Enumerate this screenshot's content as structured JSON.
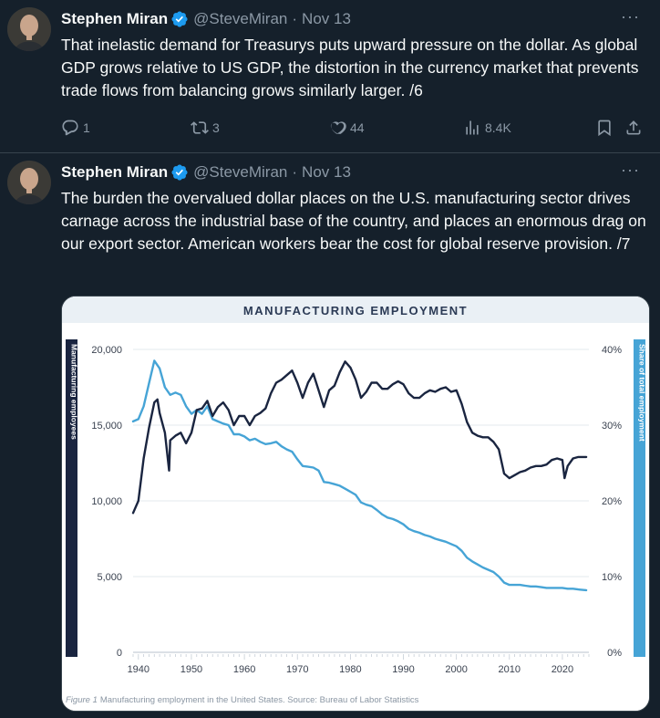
{
  "tweets": [
    {
      "author": "Stephen Miran",
      "handle": "@SteveMiran",
      "date": "Nov 13",
      "text": "That inelastic demand for Treasurys puts upward pressure on the dollar. As global GDP grows relative to US GDP, the distortion in the currency market that prevents trade flows from balancing grows similarly larger. /6",
      "replies": "1",
      "reposts": "3",
      "likes": "44",
      "views": "8.4K"
    },
    {
      "author": "Stephen Miran",
      "handle": "@SteveMiran",
      "date": "Nov 13",
      "text": "The burden the overvalued dollar places on the U.S. manufacturing sector drives carnage across the industrial base of the country, and places an enormous drag on our export sector. American workers bear the cost for global reserve provision. /7"
    }
  ],
  "colors": {
    "accent": "#1d9bf0",
    "employees_line": "#1a2540",
    "share_line": "#46a4d6"
  },
  "chart_data": {
    "type": "line",
    "title": "MANUFACTURING EMPLOYMENT",
    "ylabel_left": "Manufacturing employees",
    "ylabel_right": "Share of total employment",
    "caption_prefix": "Figure 1",
    "caption": "Manufacturing employment in the United States. Source: Bureau of Labor Statistics",
    "xlim": [
      1939,
      2025
    ],
    "ylim_left": [
      0,
      20000
    ],
    "ylim_right": [
      0,
      40
    ],
    "x_ticks": [
      "1940",
      "1950",
      "1960",
      "1970",
      "1980",
      "1990",
      "2000",
      "2010",
      "2020"
    ],
    "y_ticks_left": [
      "0",
      "5,000",
      "10,000",
      "15,000",
      "20,000"
    ],
    "y_ticks_right": [
      "0%",
      "10%",
      "20%",
      "30%",
      "40%"
    ],
    "grid": true,
    "series": [
      {
        "name": "Manufacturing employees",
        "axis": "left",
        "x": [
          1939,
          1940,
          1941,
          1942,
          1943,
          1943.6,
          1944,
          1945,
          1945.8,
          1946,
          1947,
          1948,
          1949,
          1950,
          1951,
          1952,
          1953,
          1954,
          1955,
          1956,
          1957,
          1958,
          1959,
          1960,
          1961,
          1962,
          1963,
          1964,
          1965,
          1966,
          1967,
          1968,
          1969,
          1970,
          1971,
          1972,
          1973,
          1974,
          1975,
          1976,
          1977,
          1978,
          1979,
          1980,
          1981,
          1982,
          1983,
          1984,
          1985,
          1986,
          1987,
          1988,
          1989,
          1990,
          1991,
          1992,
          1993,
          1994,
          1995,
          1996,
          1997,
          1998,
          1999,
          2000,
          2001,
          2002,
          2003,
          2004,
          2005,
          2006,
          2007,
          2008,
          2009,
          2010,
          2011,
          2012,
          2013,
          2014,
          2015,
          2016,
          2017,
          2018,
          2019,
          2020,
          2020.4,
          2021,
          2022,
          2023,
          2024.5
        ],
        "values": [
          9200,
          10000,
          12800,
          14800,
          16500,
          16700,
          15800,
          14500,
          12000,
          14000,
          14300,
          14500,
          13800,
          14500,
          16000,
          16100,
          16600,
          15600,
          16200,
          16500,
          16000,
          15000,
          15600,
          15600,
          15000,
          15600,
          15800,
          16100,
          17100,
          17800,
          18000,
          18300,
          18600,
          17800,
          16800,
          17800,
          18400,
          17300,
          16200,
          17300,
          17600,
          18500,
          19200,
          18800,
          18000,
          16800,
          17200,
          17800,
          17800,
          17400,
          17400,
          17700,
          17900,
          17700,
          17100,
          16800,
          16800,
          17100,
          17300,
          17200,
          17400,
          17500,
          17200,
          17300,
          16400,
          15200,
          14500,
          14300,
          14200,
          14200,
          13900,
          13400,
          11800,
          11500,
          11700,
          11900,
          12000,
          12200,
          12300,
          12300,
          12400,
          12700,
          12800,
          12700,
          11500,
          12300,
          12800,
          12900,
          12900
        ]
      },
      {
        "name": "Share of total employment",
        "axis": "right",
        "x": [
          1939,
          1940,
          1941,
          1942,
          1943,
          1944,
          1945,
          1946,
          1947,
          1948,
          1949,
          1950,
          1951,
          1952,
          1953,
          1954,
          1955,
          1956,
          1957,
          1958,
          1959,
          1960,
          1961,
          1962,
          1963,
          1964,
          1965,
          1966,
          1967,
          1968,
          1969,
          1970,
          1971,
          1972,
          1973,
          1974,
          1975,
          1976,
          1977,
          1978,
          1979,
          1980,
          1981,
          1982,
          1983,
          1984,
          1985,
          1986,
          1987,
          1988,
          1989,
          1990,
          1991,
          1992,
          1993,
          1994,
          1995,
          1996,
          1997,
          1998,
          1999,
          2000,
          2001,
          2002,
          2003,
          2004,
          2005,
          2006,
          2007,
          2008,
          2009,
          2010,
          2011,
          2012,
          2013,
          2014,
          2015,
          2016,
          2017,
          2018,
          2019,
          2020,
          2021,
          2022,
          2023,
          2024.5
        ],
        "values": [
          30.5,
          30.8,
          32.5,
          35.5,
          38.5,
          37.5,
          35.0,
          34.0,
          34.3,
          34.0,
          32.5,
          31.5,
          32.0,
          31.5,
          32.5,
          30.8,
          30.5,
          30.2,
          30.0,
          28.8,
          28.8,
          28.5,
          28.0,
          28.2,
          27.8,
          27.5,
          27.6,
          27.8,
          27.2,
          26.8,
          26.5,
          25.5,
          24.6,
          24.5,
          24.4,
          24.0,
          22.5,
          22.4,
          22.2,
          22.0,
          21.6,
          21.2,
          20.8,
          19.8,
          19.5,
          19.3,
          18.8,
          18.2,
          17.8,
          17.6,
          17.3,
          16.9,
          16.3,
          16.0,
          15.8,
          15.5,
          15.3,
          15.0,
          14.8,
          14.6,
          14.3,
          14.0,
          13.4,
          12.5,
          12.0,
          11.6,
          11.2,
          10.9,
          10.6,
          10.0,
          9.2,
          8.9,
          8.9,
          8.9,
          8.8,
          8.7,
          8.7,
          8.6,
          8.5,
          8.5,
          8.5,
          8.5,
          8.4,
          8.4,
          8.3,
          8.2
        ]
      }
    ]
  }
}
